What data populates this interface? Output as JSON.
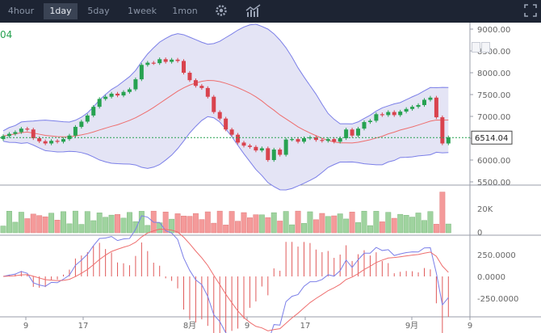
{
  "toolbar": {
    "tabs": [
      {
        "label": "4hour",
        "active": false
      },
      {
        "label": "1day",
        "active": true
      },
      {
        "label": "5day",
        "active": false
      },
      {
        "label": "1week",
        "active": false
      },
      {
        "label": "1mon",
        "active": false
      }
    ],
    "settings_icon": "gear-icon",
    "indicators_icon": "chart-indicators-icon",
    "fullscreen_icon": "fullscreen-icon"
  },
  "price_label": "04",
  "current_price": "6514.04",
  "colors": {
    "up": "#27a251",
    "down": "#d9434e",
    "band": "#7b7fe8",
    "mid": "#ee6e6e",
    "toolbar": "#1d2433"
  },
  "chart_data": {
    "type": "candlestick",
    "price_axis": {
      "ticks": [
        "9000.00",
        "8500.00",
        "8000.00",
        "7500.00",
        "7000.00",
        "6500.00",
        "6000.00",
        "5500.00"
      ],
      "ylim": [
        5500,
        9000
      ]
    },
    "volume_axis": {
      "ticks": [
        "20K",
        "0"
      ]
    },
    "macd_axis": {
      "ticks": [
        "250.0000",
        "0.0000",
        "-250.0000"
      ]
    },
    "x_ticks": [
      "9",
      "17",
      "8月",
      "9",
      "17",
      "9月",
      "9"
    ]
  }
}
